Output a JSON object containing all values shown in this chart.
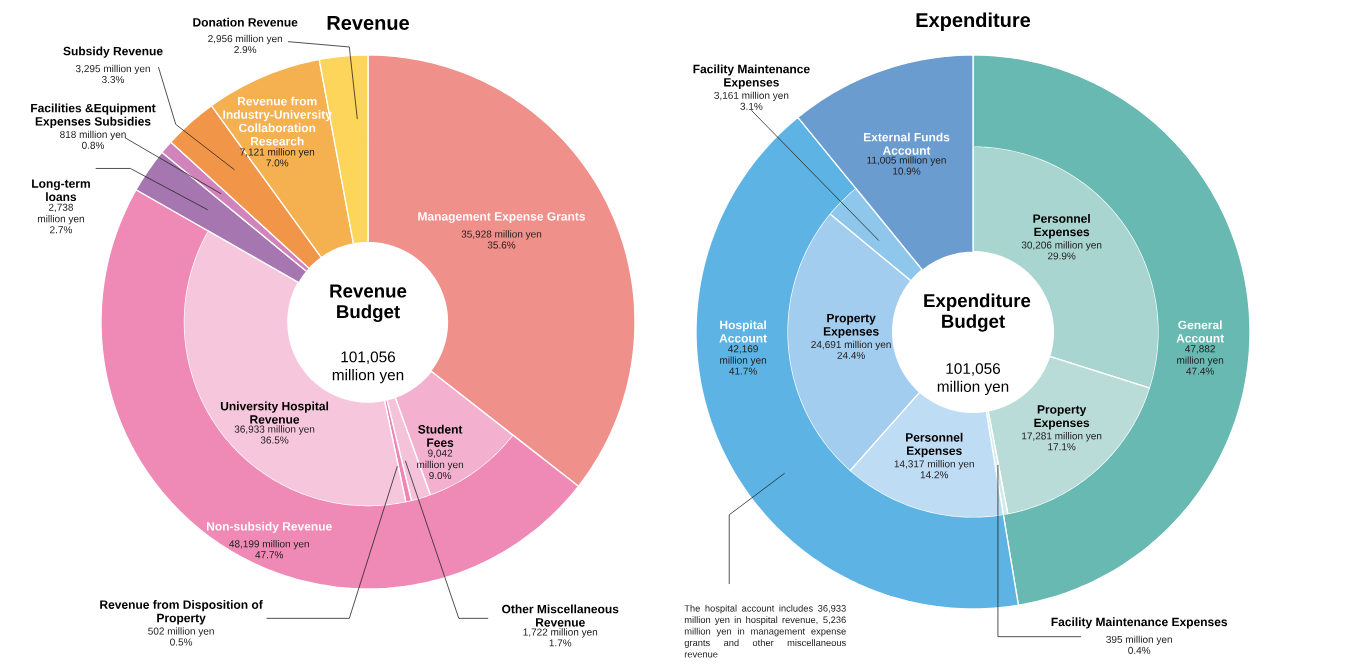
{
  "chart_data": [
    {
      "type": "donut",
      "title": "Revenue",
      "categories": [
        "Management Expense Grants",
        "Non-subsidy Revenue",
        "Long-term loans",
        "Facilities &Equipment Expenses Subsidies",
        "Subsidy Revenue",
        "Revenue from Industry-University Collaboration Research",
        "Donation Revenue"
      ],
      "values": [
        35928,
        48199,
        2738,
        818,
        3295,
        7121,
        2956
      ],
      "colors": [
        "#ef918a",
        "#ee8ab5",
        "#a576b0",
        "#d183bb",
        "#f19549",
        "#f5b050",
        "#fdd55a"
      ],
      "value_labels": [
        "35,928 million yen",
        "48,199 million yen",
        "2,738 million yen",
        "818 million yen",
        "3,295 million yen",
        "7,121 million yen",
        "2,956 million yen"
      ],
      "annotations": [
        "35.6%",
        "47.7%",
        "2.7%",
        "0.8%",
        "3.3%",
        "7.0%",
        "2.9%"
      ]
    },
    {
      "type": "donut",
      "title": "Revenue Budget",
      "subtitle": "101,056 million yen",
      "categories": [
        null,
        "Student Fees",
        "Other Miscellaneous Revenue",
        "Revenue from Disposition of Property",
        "University Hospital Revenue",
        null,
        null,
        null,
        null,
        null
      ],
      "values": [
        35928,
        9042,
        1722,
        502,
        36933,
        2738,
        818,
        3295,
        7121,
        2956
      ],
      "colors": [
        "#ef918a",
        "#f4b0cf",
        "#f5c3d9",
        "#ee86b5",
        "#f6c7dc",
        "#a576b0",
        "#d183bb",
        "#f19549",
        "#f5b050",
        "#fdd55a"
      ],
      "value_labels": [
        null,
        "9,042 million yen",
        "1,722 million yen",
        "502 million yen",
        "36,933 million yen",
        null,
        null,
        null,
        null,
        null
      ],
      "annotations": [
        "9.0%",
        "1.7%",
        "0.5%",
        "36.5%"
      ]
    },
    {
      "type": "donut",
      "title": "Expenditure",
      "categories": [
        "General Account",
        "Hospital Account",
        "External Funds Account"
      ],
      "values": [
        47882,
        42169,
        11005
      ],
      "colors": [
        "#67b9b1",
        "#5db3e3",
        "#6a9ccf"
      ],
      "value_labels": [
        "47,882 million yen",
        "42,169 million yen",
        "11,005 million yen"
      ],
      "annotations": [
        "47.4%",
        "41.7%",
        "10.9%",
        "The hospital account includes 36,933 million yen in hospital revenue, 5,236 million yen in management expense grants and other miscellaneous revenue"
      ]
    },
    {
      "type": "donut",
      "title": "Expenditure Budget",
      "subtitle": "101,056 million yen",
      "categories": [
        "Personnel Expenses",
        "Property Expenses",
        "Facility Maintenance Expenses",
        "Personnel Expenses",
        "Property Expenses",
        "Facility Maintenance Expenses",
        null
      ],
      "values": [
        30206,
        17281,
        395,
        14317,
        24691,
        3161,
        11005
      ],
      "colors": [
        "#a8d5cf",
        "#badcd8",
        "#d4ece8",
        "#bedcf4",
        "#a3cdee",
        "#8ec6ec",
        "#6a9ccf"
      ],
      "value_labels": [
        "30,206 million yen",
        "17,281 million yen",
        "395 million yen",
        "14,317 million yen",
        "24,691 million yen",
        "3,161 million yen",
        null
      ],
      "annotations": [
        "29.9%",
        "17.1%",
        "0.4%",
        "14.2%",
        "24.4%",
        "3.1%"
      ]
    }
  ]
}
